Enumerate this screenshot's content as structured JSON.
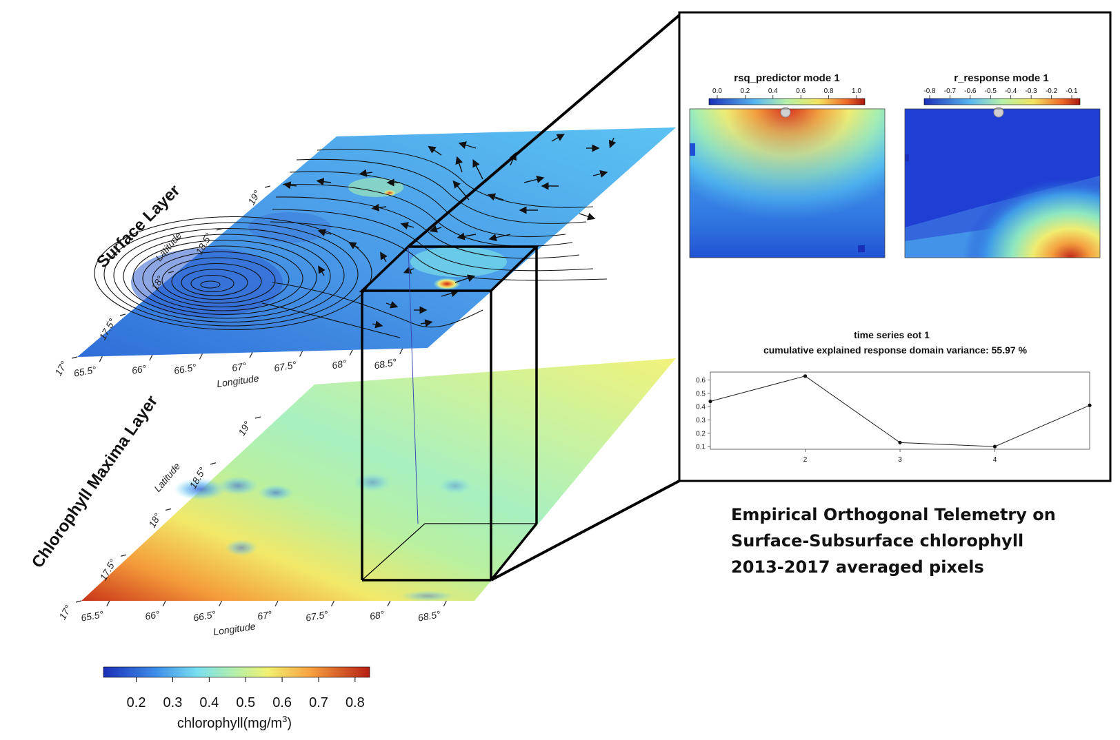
{
  "layers": {
    "surface": {
      "label": "Surface Layer",
      "lat_axis": "Latitude",
      "lon_axis": "Longitude",
      "lat_ticks": [
        "17°",
        "17.5°",
        "18°",
        "18.5°",
        "19°"
      ],
      "lon_ticks": [
        "65.5°",
        "66°",
        "66.5°",
        "67°",
        "67.5°",
        "68°",
        "68.5°"
      ]
    },
    "chlorophyll": {
      "label": "Chlorophyll Maxima Layer",
      "lat_axis": "Latitude",
      "lon_axis": "Longitude",
      "lat_ticks": [
        "17°",
        "17.5°",
        "18°",
        "18.5°",
        "19°"
      ],
      "lon_ticks": [
        "65.5°",
        "66°",
        "66.5°",
        "67°",
        "67.5°",
        "68°",
        "68.5°"
      ]
    }
  },
  "colorbar": {
    "label": "chlorophyll(mg/m",
    "label_sup": "3",
    "label_end": ")",
    "ticks": [
      "0.2",
      "0.3",
      "0.4",
      "0.5",
      "0.6",
      "0.7",
      "0.8"
    ]
  },
  "inset": {
    "rsq_panel": {
      "title": "rsq_predictor mode 1",
      "ticks": [
        "0.0",
        "0.2",
        "0.4",
        "0.6",
        "0.8",
        "1.0"
      ]
    },
    "r_panel": {
      "title": "r_response mode 1",
      "ticks": [
        "-0.8",
        "-0.7",
        "-0.6",
        "-0.5",
        "-0.4",
        "-0.3",
        "-0.2",
        "-0.1"
      ]
    },
    "timeseries_title": "time series eot 1",
    "variance_text": "cumulative explained response domain variance: 55.97 %"
  },
  "colors": {
    "low": "#1a2fb8",
    "mid": "#8fe9b8",
    "high": "#c0261a",
    "surface_base": "#4a9ae8",
    "chl_base": "#c8f2a0"
  },
  "chart_data": {
    "type": "line",
    "x": [
      1,
      2,
      3,
      4,
      5
    ],
    "y": [
      0.44,
      0.63,
      0.13,
      0.1,
      0.41
    ],
    "x_ticks": [
      "2",
      "3",
      "4"
    ],
    "y_ticks": [
      "0.1",
      "0.2",
      "0.3",
      "0.4",
      "0.5",
      "0.6"
    ],
    "xlim": [
      1,
      5
    ],
    "ylim": [
      0.08,
      0.66
    ]
  },
  "caption": {
    "line1": "Empirical Orthogonal Telemetry on",
    "line2": "Surface-Subsurface chlorophyll",
    "line3": "2013-2017 averaged pixels"
  }
}
